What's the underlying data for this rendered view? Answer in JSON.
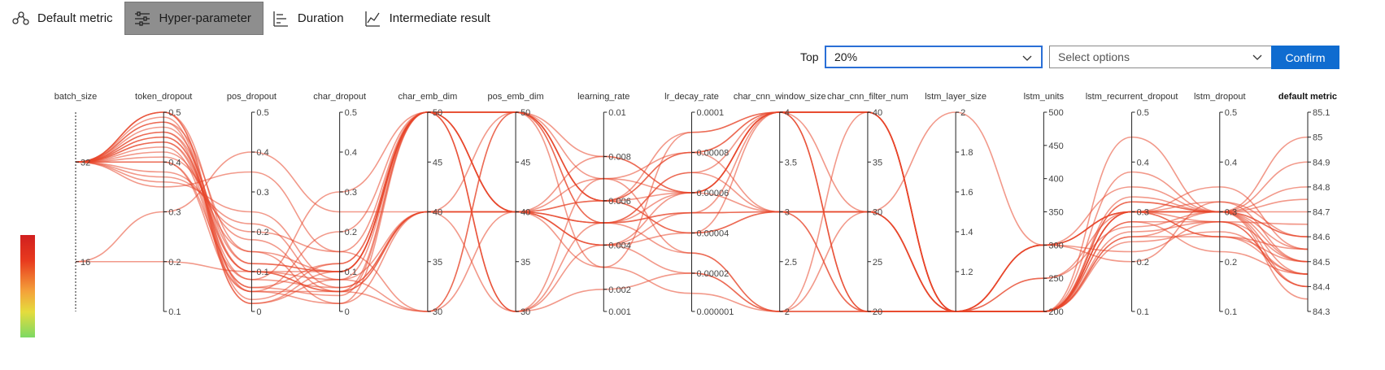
{
  "tabs": [
    {
      "label": "Default metric",
      "icon": "default-metric-icon",
      "active": false
    },
    {
      "label": "Hyper-parameter",
      "icon": "hyper-parameter-icon",
      "active": true
    },
    {
      "label": "Duration",
      "icon": "duration-icon",
      "active": false
    },
    {
      "label": "Intermediate result",
      "icon": "intermediate-result-icon",
      "active": false
    }
  ],
  "controls": {
    "top_label": "Top",
    "top_value": "20%",
    "options_placeholder": "Select options",
    "confirm_label": "Confirm"
  },
  "colors": {
    "line": "#e8452a",
    "accent": "#0f6cd0"
  },
  "chart_data": {
    "type": "parallel-coordinates",
    "axes": [
      {
        "name": "batch_size",
        "ticks": [
          "32",
          "16"
        ],
        "tick_values": [
          32,
          16
        ],
        "range": [
          8,
          40
        ],
        "dotted": true
      },
      {
        "name": "token_dropout",
        "ticks": [
          "0.5",
          "0.4",
          "0.3",
          "0.2",
          "0.1"
        ],
        "tick_values": [
          0.5,
          0.4,
          0.3,
          0.2,
          0.1
        ],
        "range": [
          0.1,
          0.5
        ]
      },
      {
        "name": "pos_dropout",
        "ticks": [
          "0.5",
          "0.4",
          "0.3",
          "0.2",
          "0.1",
          "0"
        ],
        "tick_values": [
          0.5,
          0.4,
          0.3,
          0.2,
          0.1,
          0
        ],
        "range": [
          0,
          0.5
        ]
      },
      {
        "name": "char_dropout",
        "ticks": [
          "0.5",
          "0.4",
          "0.3",
          "0.2",
          "0.1",
          "0"
        ],
        "tick_values": [
          0.5,
          0.4,
          0.3,
          0.2,
          0.1,
          0
        ],
        "range": [
          0,
          0.5
        ]
      },
      {
        "name": "char_emb_dim",
        "ticks": [
          "50",
          "45",
          "40",
          "35",
          "30"
        ],
        "tick_values": [
          50,
          45,
          40,
          35,
          30
        ],
        "range": [
          30,
          50
        ]
      },
      {
        "name": "pos_emb_dim",
        "ticks": [
          "50",
          "45",
          "40",
          "35",
          "30"
        ],
        "tick_values": [
          50,
          45,
          40,
          35,
          30
        ],
        "range": [
          30,
          50
        ]
      },
      {
        "name": "learning_rate",
        "ticks": [
          "0.01",
          "0.008",
          "0.006",
          "0.004",
          "0.002",
          "0.001"
        ],
        "tick_values": [
          0.01,
          0.008,
          0.006,
          0.004,
          0.002,
          0.001
        ],
        "range": [
          0.001,
          0.01
        ]
      },
      {
        "name": "lr_decay_rate",
        "ticks": [
          "0.0001",
          "0.00008",
          "0.00006",
          "0.00004",
          "0.00002",
          "0.000001"
        ],
        "tick_values": [
          0.0001,
          8e-05,
          6e-05,
          4e-05,
          2e-05,
          1e-06
        ],
        "range": [
          1e-06,
          0.0001
        ]
      },
      {
        "name": "char_cnn_window_size",
        "ticks": [
          "4",
          "3.5",
          "3",
          "2.5",
          "2"
        ],
        "tick_values": [
          4,
          3.5,
          3,
          2.5,
          2
        ],
        "range": [
          2,
          4
        ]
      },
      {
        "name": "char_cnn_filter_num",
        "ticks": [
          "40",
          "35",
          "30",
          "25",
          "20"
        ],
        "tick_values": [
          40,
          35,
          30,
          25,
          20
        ],
        "range": [
          20,
          40
        ]
      },
      {
        "name": "lstm_layer_size",
        "ticks": [
          "2",
          "1.8",
          "1.6",
          "1.4",
          "1.2"
        ],
        "tick_values": [
          2,
          1.8,
          1.6,
          1.4,
          1.2
        ],
        "range": [
          1,
          2
        ]
      },
      {
        "name": "lstm_units",
        "ticks": [
          "500",
          "450",
          "400",
          "350",
          "300",
          "250",
          "200"
        ],
        "tick_values": [
          500,
          450,
          400,
          350,
          300,
          250,
          200
        ],
        "range": [
          200,
          500
        ]
      },
      {
        "name": "lstm_recurrent_dropout",
        "ticks": [
          "0.5",
          "0.4",
          "0.3",
          "0.2",
          "0.1"
        ],
        "tick_values": [
          0.5,
          0.4,
          0.3,
          0.2,
          0.1
        ],
        "range": [
          0.1,
          0.5
        ]
      },
      {
        "name": "lstm_dropout",
        "ticks": [
          "0.5",
          "0.4",
          "0.3",
          "0.2",
          "0.1"
        ],
        "tick_values": [
          0.5,
          0.4,
          0.3,
          0.2,
          0.1
        ],
        "range": [
          0.1,
          0.5
        ]
      },
      {
        "name": "default metric",
        "ticks": [
          "85.1",
          "85",
          "84.9",
          "84.8",
          "84.7",
          "84.6",
          "84.5",
          "84.4",
          "84.3"
        ],
        "tick_values": [
          85.1,
          85,
          84.9,
          84.8,
          84.7,
          84.6,
          84.5,
          84.4,
          84.3
        ],
        "range": [
          84.3,
          85.1
        ],
        "bold": true
      }
    ],
    "trials": [
      [
        32,
        0.5,
        0.05,
        0.05,
        50,
        50,
        0.006,
        6e-05,
        4,
        40,
        1,
        200,
        0.3,
        0.3,
        84.55
      ],
      [
        32,
        0.45,
        0.1,
        0.1,
        50,
        40,
        0.007,
        8e-05,
        4,
        30,
        1,
        200,
        0.25,
        0.25,
        84.45
      ],
      [
        32,
        0.48,
        0.02,
        0.08,
        40,
        50,
        0.005,
        5e-05,
        3,
        20,
        1,
        300,
        0.35,
        0.3,
        84.6
      ],
      [
        32,
        0.42,
        0.15,
        0.02,
        50,
        30,
        0.004,
        2e-05,
        2,
        40,
        1,
        200,
        0.28,
        0.28,
        84.4
      ],
      [
        32,
        0.4,
        0.08,
        0.06,
        40,
        40,
        0.006,
        9e-05,
        4,
        20,
        1,
        200,
        0.3,
        0.32,
        84.5
      ],
      [
        32,
        0.46,
        0.12,
        0.1,
        50,
        50,
        0.008,
        6e-05,
        4,
        40,
        1,
        300,
        0.22,
        0.28,
        84.65
      ],
      [
        32,
        0.38,
        0.2,
        0.15,
        30,
        40,
        0.003,
        1e-05,
        2,
        30,
        1,
        200,
        0.32,
        0.3,
        84.35
      ],
      [
        32,
        0.44,
        0.06,
        0.04,
        50,
        40,
        0.005,
        7e-05,
        3,
        20,
        1,
        200,
        0.3,
        0.25,
        84.5
      ],
      [
        32,
        0.5,
        0.03,
        0.12,
        50,
        50,
        0.006,
        4e-05,
        4,
        40,
        1,
        250,
        0.27,
        0.3,
        84.7
      ],
      [
        32,
        0.47,
        0.1,
        0.05,
        40,
        30,
        0.007,
        3e-05,
        2,
        20,
        1,
        200,
        0.33,
        0.3,
        84.45
      ],
      [
        32,
        0.43,
        0.05,
        0.2,
        50,
        40,
        0.004,
        6e-05,
        3,
        30,
        1,
        300,
        0.3,
        0.35,
        84.55
      ],
      [
        32,
        0.36,
        0.25,
        0.08,
        30,
        50,
        0.006,
        8e-05,
        4,
        40,
        1,
        200,
        0.25,
        0.3,
        84.8
      ],
      [
        32,
        0.49,
        0.02,
        0.1,
        50,
        40,
        0.005,
        5e-05,
        4,
        20,
        1,
        200,
        0.3,
        0.28,
        84.5
      ],
      [
        32,
        0.41,
        0.18,
        0.05,
        40,
        40,
        0.004,
        4e-05,
        3,
        30,
        2,
        300,
        0.2,
        0.32,
        84.6
      ],
      [
        32,
        0.45,
        0.08,
        0.3,
        50,
        30,
        0.002,
        2e-05,
        2,
        20,
        1,
        200,
        0.38,
        0.3,
        84.4
      ],
      [
        16,
        0.3,
        0.4,
        0.25,
        40,
        40,
        0.008,
        6e-05,
        4,
        40,
        1,
        200,
        0.45,
        0.3,
        84.9
      ],
      [
        16,
        0.2,
        0.1,
        0.05,
        30,
        50,
        0.006,
        8e-05,
        3,
        30,
        1,
        300,
        0.3,
        0.25,
        84.55
      ],
      [
        32,
        0.35,
        0.35,
        0.15,
        50,
        40,
        0.005,
        6e-05,
        4,
        20,
        1,
        200,
        0.28,
        0.22,
        84.45
      ],
      [
        32,
        0.48,
        0.15,
        0.1,
        50,
        50,
        0.003,
        9e-05,
        4,
        40,
        1,
        200,
        0.32,
        0.3,
        85.0
      ],
      [
        32,
        0.4,
        0.05,
        0.02,
        40,
        40,
        0.006,
        4e-05,
        3,
        30,
        1,
        300,
        0.3,
        0.3,
        84.5
      ],
      [
        32,
        0.44,
        0.1,
        0.08,
        50,
        30,
        0.005,
        3e-05,
        2,
        20,
        1,
        200,
        0.26,
        0.28,
        84.4
      ],
      [
        32,
        0.5,
        0.12,
        0.1,
        50,
        50,
        0.007,
        6e-05,
        4,
        40,
        1,
        250,
        0.3,
        0.3,
        84.6
      ],
      [
        32,
        0.37,
        0.22,
        0.06,
        40,
        40,
        0.004,
        5e-05,
        3,
        30,
        1,
        200,
        0.24,
        0.26,
        84.45
      ],
      [
        32,
        0.46,
        0.06,
        0.12,
        50,
        50,
        0.005,
        7e-05,
        4,
        40,
        1,
        300,
        0.3,
        0.3,
        84.75
      ]
    ]
  }
}
